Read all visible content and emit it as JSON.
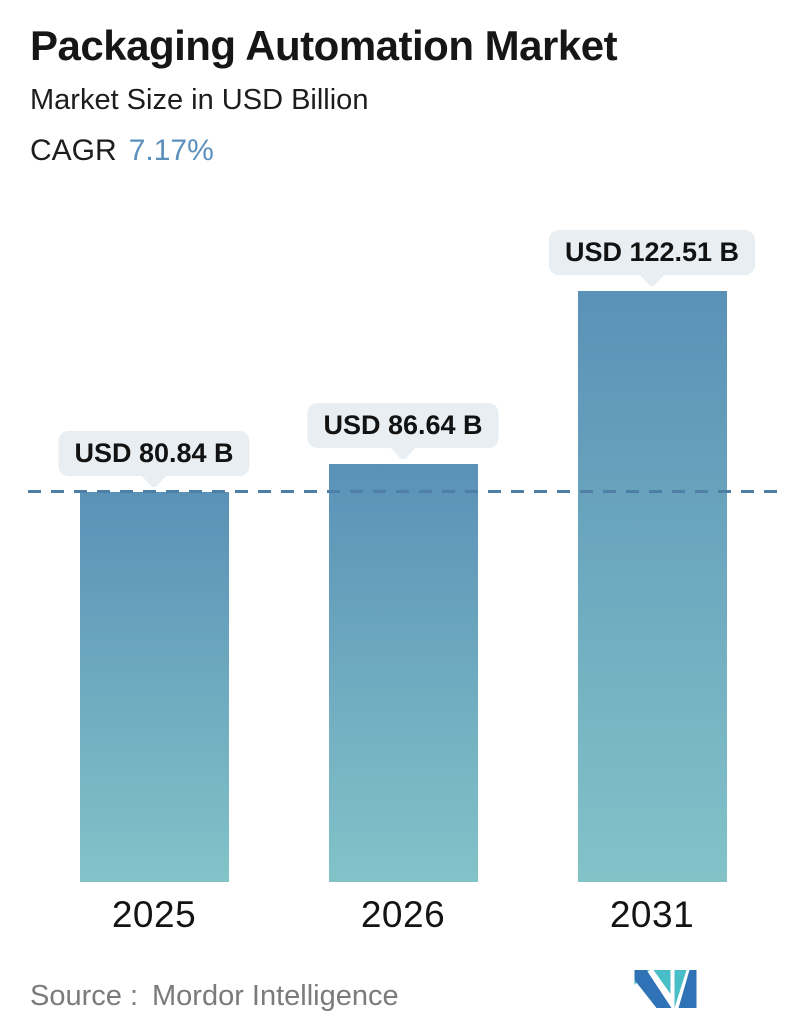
{
  "header": {
    "title": "Packaging Automation Market",
    "subtitle": "Market Size in USD Billion",
    "cagr_label": "CAGR",
    "cagr_value": "7.17%",
    "cagr_value_color": "#5b8fbc"
  },
  "chart_data": {
    "type": "bar",
    "title": "Packaging Automation Market",
    "xlabel": "",
    "ylabel": "Market Size in USD Billion",
    "categories": [
      "2025",
      "2026",
      "2031"
    ],
    "values": [
      80.84,
      86.64,
      122.51
    ],
    "value_labels": [
      "USD 80.84 B",
      "USD 86.64 B",
      "USD 122.51 B"
    ],
    "unit": "USD Billion",
    "cagr_percent": 7.17,
    "ylim": [
      0,
      130
    ],
    "grid": false,
    "legend": false,
    "reference_line": {
      "at_value": 80.84,
      "style": "dashed",
      "color": "#4d7fa7"
    },
    "bar_gradient": {
      "top": "#5a91b7",
      "bottom": "#82c3c8"
    },
    "label_badge_color": "#e8eef1"
  },
  "footer": {
    "source_label": "Source :",
    "source_value": "Mordor Intelligence",
    "logo_name": "mordor-intelligence-logo",
    "logo_colors": {
      "blue": "#2f72b5",
      "teal": "#48bec6"
    }
  }
}
